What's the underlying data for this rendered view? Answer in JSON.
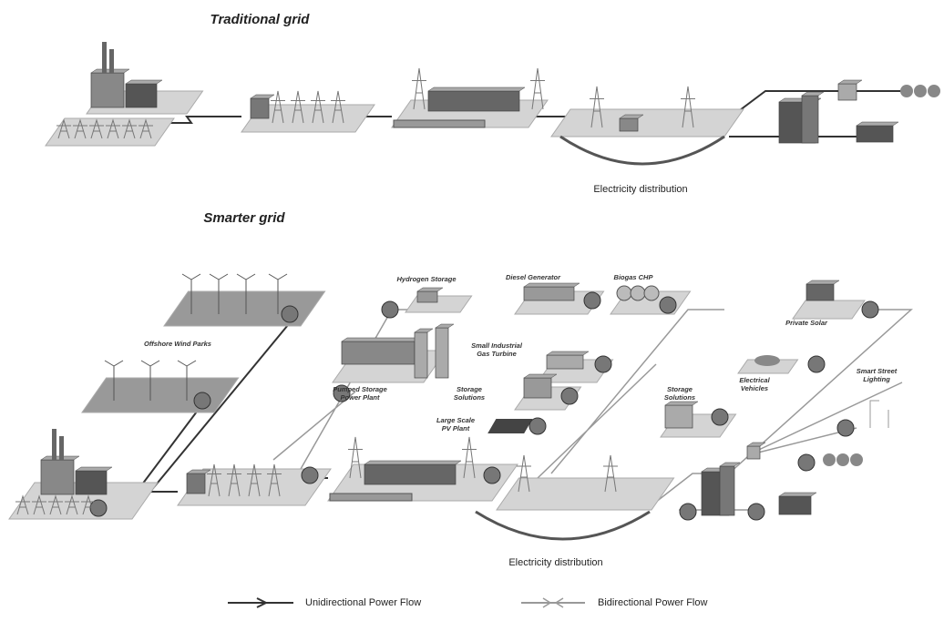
{
  "traditional_grid": {
    "title": "Traditional grid",
    "caption": "Electricity distribution"
  },
  "smarter_grid": {
    "title": "Smarter grid",
    "caption": "Electricity distribution",
    "nodes": [
      {
        "lines": [
          "Hydrogen Storage"
        ]
      },
      {
        "lines": [
          "Diesel Generator"
        ]
      },
      {
        "lines": [
          "Biogas CHP"
        ]
      },
      {
        "lines": [
          "Private Solar"
        ]
      },
      {
        "lines": [
          "Offshore Wind Parks"
        ]
      },
      {
        "lines": [
          "Small Industrial",
          "Gas Turbine"
        ]
      },
      {
        "lines": [
          "Pumped Storage",
          "Power Plant"
        ]
      },
      {
        "lines": [
          "Storage",
          "Solutions"
        ]
      },
      {
        "lines": [
          "Storage",
          "Solutions"
        ]
      },
      {
        "lines": [
          "Electrical",
          "Vehicles"
        ]
      },
      {
        "lines": [
          "Smart Street",
          "Lighting"
        ]
      },
      {
        "lines": [
          "Large Scale",
          "PV Plant"
        ]
      }
    ]
  },
  "legend": [
    {
      "label": "Unidirectional Power Flow"
    },
    {
      "label": "Bidirectional Power Flow"
    }
  ]
}
